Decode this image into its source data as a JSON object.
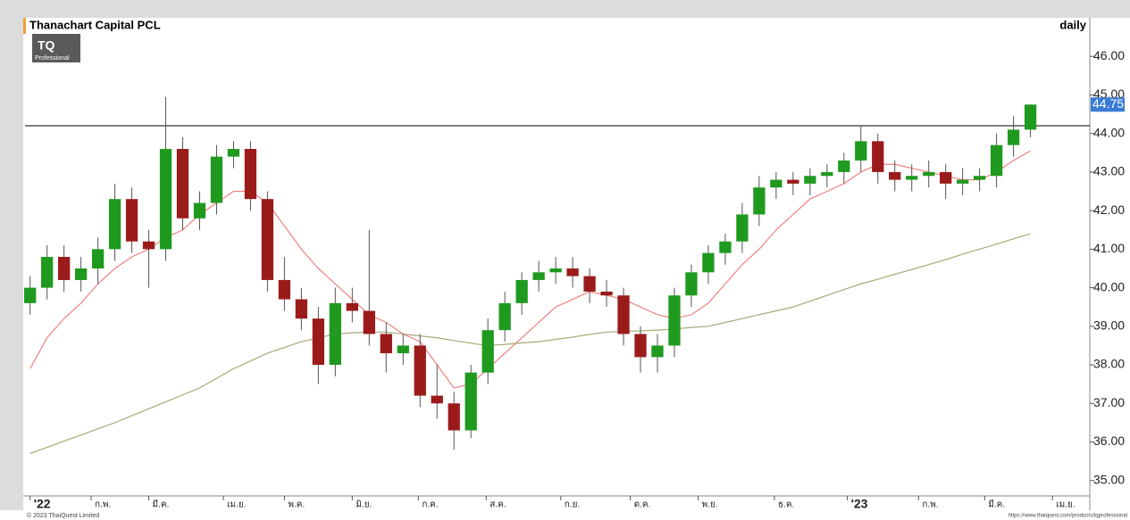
{
  "chart_data": {
    "type": "candlestick",
    "title": "Thanachart Capital PCL",
    "period": "daily",
    "logo": {
      "mark": "TQ",
      "caption": "Professional"
    },
    "copyright": "© 2023 ThaiQuest Limited",
    "url": "https://www.thaiquest.com/products/tqprofessional",
    "x": [
      0,
      1,
      2,
      3,
      4,
      5,
      6,
      7,
      8,
      9,
      10,
      11,
      12,
      13,
      14,
      15,
      16,
      17,
      18,
      19,
      20,
      21,
      22,
      23,
      24,
      25,
      26,
      27,
      28,
      29,
      30,
      31,
      32,
      33,
      34,
      35,
      36,
      37,
      38,
      39,
      40,
      41,
      42,
      43,
      44,
      45,
      46,
      47,
      48,
      49,
      50,
      51,
      52,
      53,
      54,
      55,
      56,
      57,
      58,
      59
    ],
    "open": [
      39.6,
      40.0,
      40.8,
      40.2,
      40.5,
      41.0,
      42.3,
      41.2,
      41.0,
      43.6,
      41.8,
      42.2,
      43.4,
      43.6,
      42.3,
      40.2,
      39.7,
      39.2,
      38.0,
      39.6,
      39.4,
      38.8,
      38.3,
      38.5,
      37.2,
      37.0,
      36.3,
      37.8,
      38.9,
      39.6,
      40.2,
      40.4,
      40.5,
      40.3,
      39.9,
      39.8,
      38.8,
      38.2,
      38.5,
      39.8,
      40.4,
      40.9,
      41.2,
      41.9,
      42.6,
      42.8,
      42.7,
      42.9,
      43.0,
      43.3,
      43.8,
      43.0,
      42.8,
      42.9,
      43.0,
      42.7,
      42.8,
      42.9,
      43.7,
      44.1
    ],
    "high": [
      40.3,
      41.1,
      41.1,
      40.8,
      41.3,
      42.7,
      42.6,
      41.5,
      44.95,
      43.9,
      42.5,
      43.7,
      43.8,
      43.8,
      42.5,
      40.8,
      40.0,
      39.5,
      40.0,
      40.0,
      41.5,
      39.1,
      38.8,
      38.8,
      38.0,
      37.3,
      38.0,
      39.2,
      39.9,
      40.4,
      40.7,
      40.8,
      40.8,
      40.5,
      40.2,
      40.0,
      39.0,
      38.8,
      40.0,
      40.6,
      41.1,
      41.4,
      42.2,
      42.9,
      43.0,
      43.0,
      43.1,
      43.2,
      43.5,
      44.2,
      44.0,
      43.3,
      43.2,
      43.3,
      43.2,
      43.1,
      43.1,
      44.0,
      44.45,
      44.75
    ],
    "low": [
      39.3,
      39.7,
      39.9,
      39.9,
      40.1,
      40.7,
      40.9,
      40.0,
      40.7,
      41.5,
      41.5,
      41.9,
      43.1,
      42.0,
      39.9,
      39.4,
      38.9,
      37.5,
      37.7,
      39.1,
      38.5,
      37.8,
      38.0,
      36.9,
      36.6,
      35.8,
      36.1,
      37.5,
      38.6,
      39.3,
      39.9,
      40.1,
      40.0,
      39.6,
      39.5,
      38.5,
      37.8,
      37.8,
      38.2,
      39.5,
      40.1,
      40.6,
      40.9,
      41.6,
      42.3,
      42.4,
      42.4,
      42.6,
      42.7,
      43.0,
      42.7,
      42.5,
      42.5,
      42.6,
      42.3,
      42.4,
      42.5,
      42.6,
      43.4,
      43.9
    ],
    "close": [
      40.0,
      40.8,
      40.2,
      40.5,
      41.0,
      42.3,
      41.2,
      41.0,
      43.6,
      41.8,
      42.2,
      43.4,
      43.6,
      42.3,
      40.2,
      39.7,
      39.2,
      38.0,
      39.6,
      39.4,
      38.8,
      38.3,
      38.5,
      37.2,
      37.0,
      36.3,
      37.8,
      38.9,
      39.6,
      40.2,
      40.4,
      40.5,
      40.3,
      39.9,
      39.8,
      38.8,
      38.2,
      38.5,
      39.8,
      40.4,
      40.9,
      41.2,
      41.9,
      42.6,
      42.8,
      42.7,
      42.9,
      43.0,
      43.3,
      43.8,
      43.0,
      42.8,
      42.9,
      43.0,
      42.7,
      42.8,
      42.9,
      43.7,
      44.1,
      44.75
    ],
    "up_color": "#1f9a1f",
    "down_color": "#9b1b1b",
    "series": [
      {
        "color": "#f08080",
        "values": [
          37.9,
          38.7,
          39.2,
          39.6,
          40.1,
          40.5,
          40.8,
          41.0,
          41.3,
          41.5,
          41.9,
          42.2,
          42.5,
          42.5,
          42.2,
          41.6,
          41.0,
          40.5,
          40.1,
          39.7,
          39.3,
          39.1,
          38.8,
          38.6,
          38.0,
          37.4,
          37.5,
          37.9,
          38.3,
          38.7,
          39.1,
          39.5,
          39.7,
          39.9,
          39.8,
          39.7,
          39.5,
          39.3,
          39.2,
          39.3,
          39.6,
          40.1,
          40.6,
          41.0,
          41.5,
          41.9,
          42.3,
          42.5,
          42.7,
          43.0,
          43.2,
          43.2,
          43.1,
          43.0,
          42.9,
          42.8,
          42.8,
          43.0,
          43.3,
          43.55
        ]
      },
      {
        "color": "#a8a878",
        "values": [
          35.7,
          35.86,
          36.02,
          36.18,
          36.34,
          36.5,
          36.68,
          36.86,
          37.04,
          37.22,
          37.4,
          37.65,
          37.9,
          38.1,
          38.3,
          38.45,
          38.6,
          38.7,
          38.8,
          38.83,
          38.85,
          38.85,
          38.8,
          38.75,
          38.7,
          38.63,
          38.56,
          38.5,
          38.53,
          38.57,
          38.6,
          38.66,
          38.72,
          38.79,
          38.85,
          38.87,
          38.88,
          38.9,
          38.93,
          38.97,
          39.0,
          39.1,
          39.2,
          39.3,
          39.4,
          39.5,
          39.65,
          39.8,
          39.95,
          40.1,
          40.22,
          40.35,
          40.47,
          40.6,
          40.73,
          40.87,
          41.0,
          41.13,
          41.27,
          41.4
        ]
      }
    ],
    "reference_line": 44.2,
    "last_price": {
      "value": 44.75,
      "label": "44.75"
    },
    "xlim": [
      -0.3,
      62.5
    ],
    "xticks": [
      {
        "value": 0,
        "label": "'22"
      },
      {
        "value": 3.6,
        "label": "ก.พ."
      },
      {
        "value": 7.0,
        "label": "มี.ค."
      },
      {
        "value": 11.4,
        "label": "เม.ย."
      },
      {
        "value": 15.0,
        "label": "พ.ค."
      },
      {
        "value": 19.0,
        "label": "มิ.ย."
      },
      {
        "value": 22.9,
        "label": "ก.ค."
      },
      {
        "value": 26.9,
        "label": "ส.ค."
      },
      {
        "value": 31.3,
        "label": "ก.ย."
      },
      {
        "value": 35.4,
        "label": "ต.ค."
      },
      {
        "value": 39.4,
        "label": "พ.ย."
      },
      {
        "value": 43.9,
        "label": "ธ.ค."
      },
      {
        "value": 48.2,
        "label": "'23"
      },
      {
        "value": 52.4,
        "label": "ก.พ."
      },
      {
        "value": 56.3,
        "label": "มี.ค."
      },
      {
        "value": 60.3,
        "label": "เม.ย."
      }
    ],
    "ylim": [
      34.6,
      47.0
    ],
    "yticks": [
      {
        "value": 35,
        "label": "35.00"
      },
      {
        "value": 36,
        "label": "36.00"
      },
      {
        "value": 37,
        "label": "37.00"
      },
      {
        "value": 38,
        "label": "38.00"
      },
      {
        "value": 39,
        "label": "39.00"
      },
      {
        "value": 40,
        "label": "40.00"
      },
      {
        "value": 41,
        "label": "41.00"
      },
      {
        "value": 42,
        "label": "42.00"
      },
      {
        "value": 43,
        "label": "43.00"
      },
      {
        "value": 44,
        "label": "44.00"
      },
      {
        "value": 45,
        "label": "45.00"
      },
      {
        "value": 46,
        "label": "46.00"
      }
    ]
  }
}
